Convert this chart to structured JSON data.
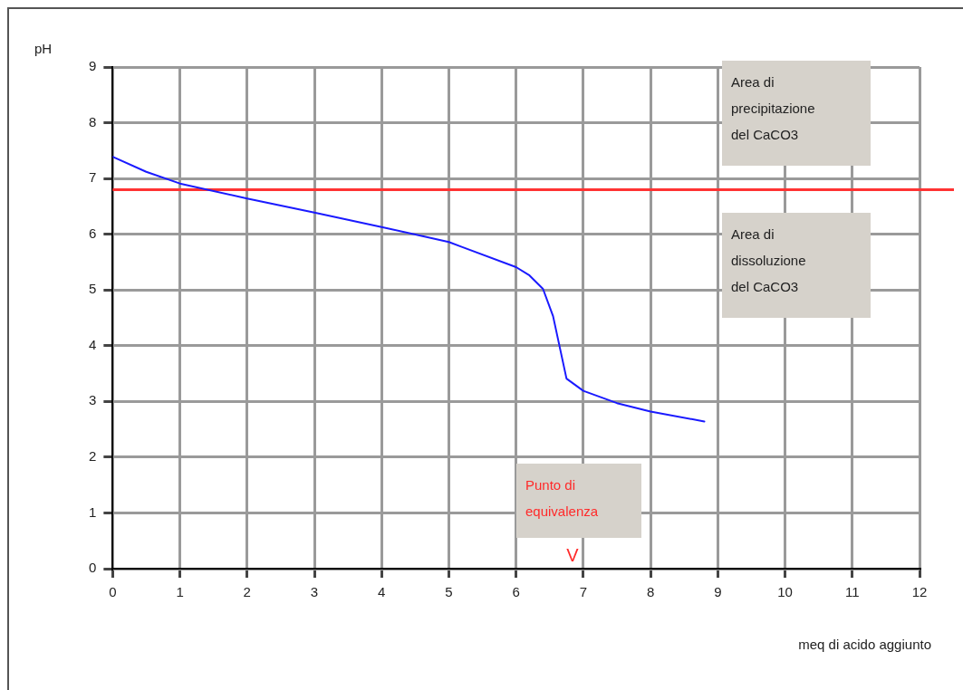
{
  "chart_data": {
    "type": "line",
    "xlabel": "meq di acido aggiunto",
    "ylabel": "pH",
    "x": [
      0,
      0.5,
      1,
      2,
      3,
      4,
      5,
      6,
      6.2,
      6.4,
      6.55,
      6.75,
      7,
      7.5,
      8,
      8.8
    ],
    "series": [
      {
        "color": "#1a1aff",
        "values": [
          7.39,
          7.12,
          6.91,
          6.64,
          6.39,
          6.13,
          5.86,
          5.41,
          5.26,
          5.02,
          4.53,
          3.41,
          3.19,
          2.97,
          2.82,
          2.64
        ]
      }
    ],
    "xlim": [
      0,
      12
    ],
    "xticks": [
      0,
      1,
      2,
      3,
      4,
      5,
      6,
      7,
      8,
      9,
      10,
      11,
      12
    ],
    "ylim": [
      0,
      9
    ],
    "yticks": [
      0,
      1,
      2,
      3,
      4,
      5,
      6,
      7,
      8,
      9
    ],
    "ref_lines": [
      {
        "axis": "y",
        "value": 6.8,
        "color": "#ff3333"
      }
    ],
    "annotations": [
      "Area di precipitazione del CaCO3",
      "Area di dissoluzione del CaCO3",
      "Punto di equivalenza",
      "V"
    ],
    "grid": true,
    "legend": false,
    "marker": "none",
    "line_style": "solid"
  }
}
